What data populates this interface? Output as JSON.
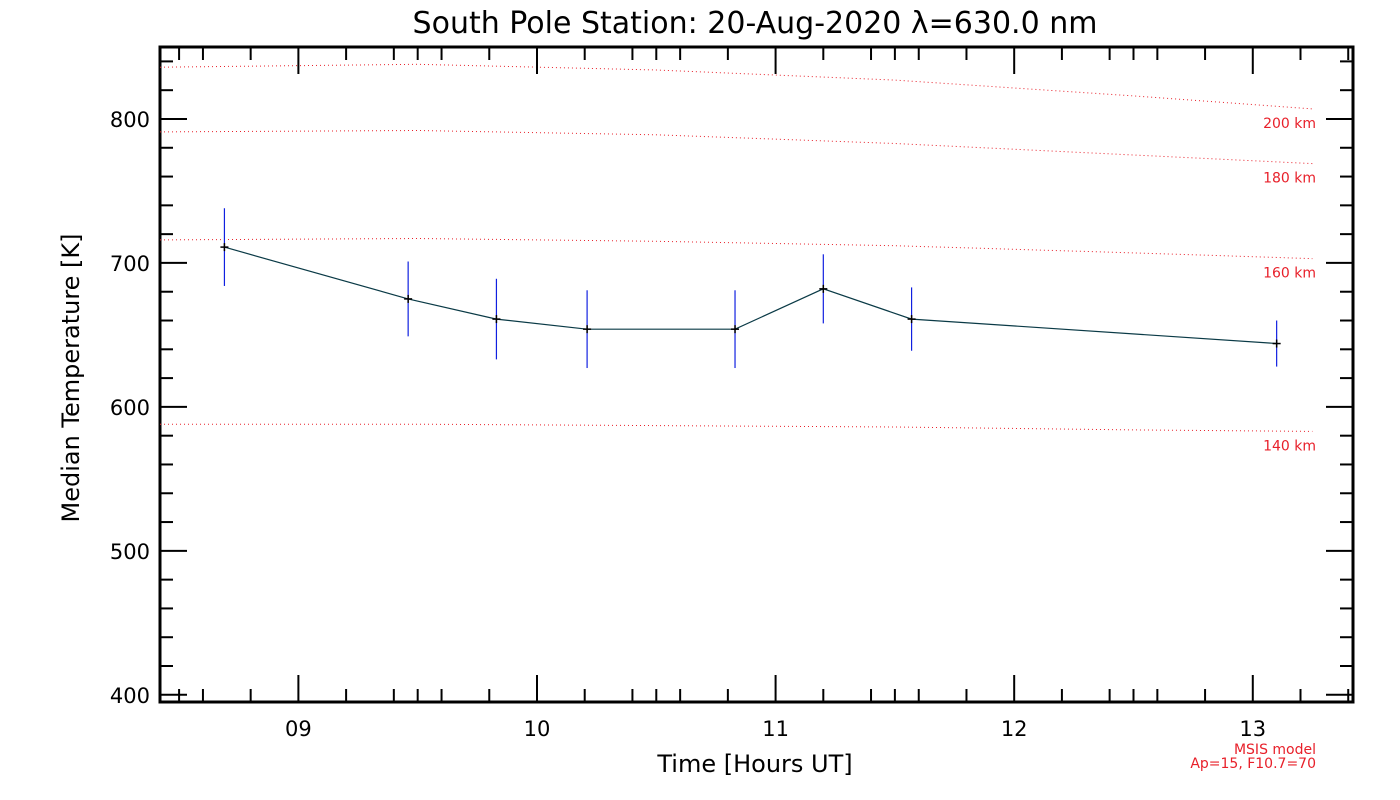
{
  "chart_data": {
    "type": "line",
    "title": "South Pole Station: 20-Aug-2020 λ=630.0 nm",
    "xlabel": "Time [Hours UT]",
    "ylabel": "Median Temperature [K]",
    "xlim": [
      8.42,
      13.42
    ],
    "ylim": [
      395,
      850
    ],
    "x_ticks": [
      9,
      10,
      11,
      12,
      13
    ],
    "x_tick_labels": [
      "09",
      "10",
      "11",
      "12",
      "13"
    ],
    "y_ticks": [
      400,
      500,
      600,
      700,
      800
    ],
    "y_tick_labels": [
      "400",
      "500",
      "600",
      "700",
      "800"
    ],
    "series": [
      {
        "name": "Median Temperature",
        "color": "#0a3a46",
        "errorbar_color": "#1020e0",
        "x": [
          8.69,
          9.46,
          9.83,
          10.21,
          10.83,
          11.2,
          11.57,
          13.1
        ],
        "y": [
          711,
          675,
          661,
          654,
          654,
          682,
          661,
          644
        ],
        "error": [
          27,
          26,
          28,
          27,
          27,
          24,
          22,
          16
        ]
      }
    ],
    "model_curves": {
      "name": "MSIS model",
      "params": "Ap=15, F10.7=70",
      "color": "#e8202a",
      "x": [
        8.42,
        9.5,
        10.5,
        11.5,
        12.5,
        13.25
      ],
      "curves": [
        {
          "label": "200 km",
          "y": [
            836,
            838,
            834,
            827,
            816,
            807
          ]
        },
        {
          "label": "180 km",
          "y": [
            791,
            792,
            789,
            783,
            775,
            769
          ]
        },
        {
          "label": "160 km",
          "y": [
            716,
            717,
            715,
            712,
            707,
            703
          ]
        },
        {
          "label": "140 km",
          "y": [
            588,
            588,
            587,
            586,
            584,
            583
          ]
        }
      ]
    }
  }
}
